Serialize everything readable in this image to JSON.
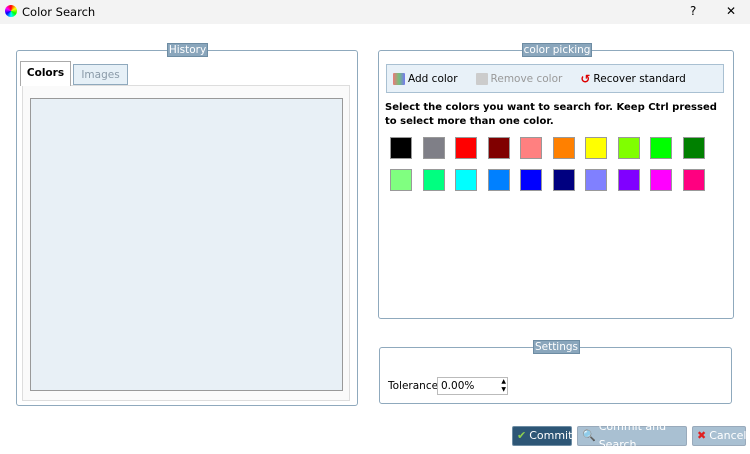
{
  "window": {
    "title": "Color Search",
    "help": "?",
    "close": "✕"
  },
  "history": {
    "title": "History",
    "tabs": [
      {
        "label": "Colors",
        "active": true
      },
      {
        "label": "Images",
        "active": false
      }
    ]
  },
  "picking": {
    "title": "color picking",
    "toolbar": {
      "add": "Add color",
      "remove": "Remove color",
      "recover": "Recover standard"
    },
    "instructions": "Select the colors you want to search for. Keep Ctrl pressed to select more than one color.",
    "colors": [
      "#000000",
      "#7f7f87",
      "#ff0000",
      "#800000",
      "#ff8080",
      "#ff8000",
      "#ffff00",
      "#80ff00",
      "#00ff00",
      "#008000",
      "#80ff80",
      "#00ff80",
      "#00ffff",
      "#0080ff",
      "#0000ff",
      "#000080",
      "#8080ff",
      "#8000ff",
      "#ff00ff",
      "#ff0080"
    ]
  },
  "settings": {
    "title": "Settings",
    "tolerance_label": "Tolerance:",
    "tolerance_value": "0.00%"
  },
  "buttons": {
    "commit": "Commit",
    "commit_search": "Commit and Search",
    "cancel": "Cancel"
  }
}
